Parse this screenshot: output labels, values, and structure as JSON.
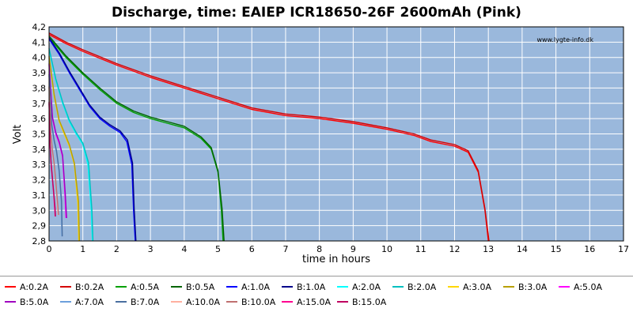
{
  "chart_data": {
    "type": "line",
    "title": "Discharge, time: EAIEP ICR18650-26F 2600mAh (Pink)",
    "xlabel": "time in hours",
    "ylabel": "Volt",
    "watermark": "www.lygte-info.dk",
    "xlim": [
      0,
      17
    ],
    "ylim": [
      2.8,
      4.2
    ],
    "x_ticks": [
      "0",
      "1",
      "2",
      "3",
      "4",
      "5",
      "6",
      "7",
      "8",
      "9",
      "10",
      "11",
      "12",
      "13",
      "14",
      "15",
      "16",
      "17"
    ],
    "y_ticks": [
      "2,8",
      "2,9",
      "3,0",
      "3,1",
      "3,2",
      "3,3",
      "3,4",
      "3,5",
      "3,6",
      "3,7",
      "3,8",
      "3,9",
      "4,0",
      "4,1",
      "4,2"
    ],
    "grid": true,
    "legend_position": "bottom",
    "plot_background": "#9ab8dc",
    "series": [
      {
        "name": "A:0.2A",
        "color": "#ff0000",
        "x": [
          0,
          0.5,
          1,
          2,
          3,
          4,
          5,
          6,
          7,
          8,
          9,
          10,
          10.8,
          11.3,
          12,
          12.4,
          12.7,
          12.9,
          13.0
        ],
        "y": [
          4.15,
          4.09,
          4.04,
          3.95,
          3.87,
          3.8,
          3.73,
          3.66,
          3.62,
          3.6,
          3.57,
          3.53,
          3.49,
          3.45,
          3.42,
          3.38,
          3.25,
          3.0,
          2.8
        ]
      },
      {
        "name": "B:0.2A",
        "color": "#d40000",
        "x": [
          0,
          0.5,
          1,
          2,
          3,
          4,
          5,
          6,
          7,
          8,
          9,
          10,
          10.8,
          11.3,
          12,
          12.4,
          12.7,
          12.9,
          13.02
        ],
        "y": [
          4.16,
          4.1,
          4.05,
          3.96,
          3.88,
          3.81,
          3.74,
          3.67,
          3.63,
          3.61,
          3.58,
          3.54,
          3.5,
          3.46,
          3.43,
          3.39,
          3.26,
          3.01,
          2.8
        ]
      },
      {
        "name": "A:0.5A",
        "color": "#00a000",
        "x": [
          0,
          0.5,
          1,
          1.5,
          2,
          2.5,
          3,
          3.5,
          4,
          4.5,
          4.8,
          5.0,
          5.1,
          5.15
        ],
        "y": [
          4.13,
          4.0,
          3.89,
          3.79,
          3.7,
          3.64,
          3.6,
          3.57,
          3.54,
          3.47,
          3.4,
          3.25,
          3.0,
          2.8
        ]
      },
      {
        "name": "B:0.5A",
        "color": "#006400",
        "x": [
          0,
          0.5,
          1,
          1.5,
          2,
          2.5,
          3,
          3.5,
          4,
          4.5,
          4.8,
          5.0,
          5.12,
          5.18
        ],
        "y": [
          4.14,
          4.01,
          3.9,
          3.8,
          3.71,
          3.65,
          3.61,
          3.58,
          3.55,
          3.48,
          3.41,
          3.26,
          3.01,
          2.8
        ]
      },
      {
        "name": "A:1.0A",
        "color": "#0000ff",
        "x": [
          0,
          0.3,
          0.6,
          0.9,
          1.2,
          1.5,
          1.8,
          2.1,
          2.3,
          2.45,
          2.5,
          2.55
        ],
        "y": [
          4.12,
          4.02,
          3.9,
          3.79,
          3.68,
          3.6,
          3.55,
          3.51,
          3.45,
          3.3,
          3.0,
          2.8
        ]
      },
      {
        "name": "B:1.0A",
        "color": "#00008b",
        "x": [
          0,
          0.3,
          0.6,
          0.9,
          1.2,
          1.5,
          1.8,
          2.1,
          2.32,
          2.47,
          2.52,
          2.57
        ],
        "y": [
          4.13,
          4.03,
          3.91,
          3.8,
          3.69,
          3.61,
          3.56,
          3.52,
          3.46,
          3.31,
          3.01,
          2.8
        ]
      },
      {
        "name": "A:2.0A",
        "color": "#00ffff",
        "x": [
          0,
          0.2,
          0.4,
          0.6,
          0.8,
          1.0,
          1.15,
          1.25,
          1.28
        ],
        "y": [
          4.05,
          3.85,
          3.7,
          3.58,
          3.5,
          3.43,
          3.3,
          3.0,
          2.8
        ]
      },
      {
        "name": "B:2.0A",
        "color": "#00c0c0",
        "x": [
          0,
          0.2,
          0.4,
          0.6,
          0.8,
          1.0,
          1.17,
          1.27,
          1.3
        ],
        "y": [
          4.06,
          3.86,
          3.71,
          3.59,
          3.51,
          3.44,
          3.31,
          3.0,
          2.8
        ]
      },
      {
        "name": "A:3.0A",
        "color": "#ffd700",
        "x": [
          0,
          0.15,
          0.3,
          0.45,
          0.6,
          0.75,
          0.85,
          0.88
        ],
        "y": [
          4.0,
          3.75,
          3.58,
          3.5,
          3.42,
          3.3,
          3.05,
          2.8
        ]
      },
      {
        "name": "B:3.0A",
        "color": "#b8a000",
        "x": [
          0,
          0.15,
          0.3,
          0.45,
          0.6,
          0.75,
          0.87,
          0.9
        ],
        "y": [
          4.01,
          3.76,
          3.59,
          3.51,
          3.43,
          3.31,
          3.06,
          2.8
        ]
      },
      {
        "name": "A:5.0A",
        "color": "#ff00ff",
        "x": [
          0,
          0.1,
          0.2,
          0.3,
          0.4,
          0.47,
          0.5
        ],
        "y": [
          3.95,
          3.6,
          3.5,
          3.44,
          3.35,
          3.1,
          2.95
        ]
      },
      {
        "name": "B:5.0A",
        "color": "#a000c0",
        "x": [
          0,
          0.1,
          0.2,
          0.3,
          0.4,
          0.48,
          0.52
        ],
        "y": [
          3.96,
          3.61,
          3.51,
          3.45,
          3.36,
          3.11,
          2.95
        ]
      },
      {
        "name": "A:7.0A",
        "color": "#6ca0dc",
        "x": [
          0,
          0.08,
          0.15,
          0.22,
          0.3,
          0.36,
          0.38
        ],
        "y": [
          3.88,
          3.55,
          3.45,
          3.38,
          3.25,
          3.05,
          2.83
        ]
      },
      {
        "name": "B:7.0A",
        "color": "#4a6fa0",
        "x": [
          0,
          0.08,
          0.15,
          0.22,
          0.3,
          0.37,
          0.39
        ],
        "y": [
          3.89,
          3.56,
          3.46,
          3.39,
          3.26,
          3.06,
          2.83
        ]
      },
      {
        "name": "A:10.0A",
        "color": "#ffb0a0",
        "x": [
          0,
          0.05,
          0.1,
          0.15,
          0.2,
          0.25,
          0.27
        ],
        "y": [
          3.8,
          3.5,
          3.38,
          3.3,
          3.18,
          3.02,
          2.97
        ]
      },
      {
        "name": "B:10.0A",
        "color": "#c07070",
        "x": [
          0,
          0.05,
          0.1,
          0.15,
          0.2,
          0.26,
          0.28
        ],
        "y": [
          3.81,
          3.51,
          3.39,
          3.31,
          3.19,
          3.03,
          2.97
        ]
      },
      {
        "name": "A:15.0A",
        "color": "#ff0090",
        "x": [
          0,
          0.03,
          0.06,
          0.1,
          0.14,
          0.17,
          0.18
        ],
        "y": [
          3.7,
          3.42,
          3.3,
          3.2,
          3.1,
          3.0,
          2.96
        ]
      },
      {
        "name": "B:15.0A",
        "color": "#c00060",
        "x": [
          0,
          0.03,
          0.06,
          0.1,
          0.14,
          0.18,
          0.19
        ],
        "y": [
          3.71,
          3.43,
          3.31,
          3.21,
          3.11,
          3.01,
          2.96
        ]
      }
    ]
  }
}
